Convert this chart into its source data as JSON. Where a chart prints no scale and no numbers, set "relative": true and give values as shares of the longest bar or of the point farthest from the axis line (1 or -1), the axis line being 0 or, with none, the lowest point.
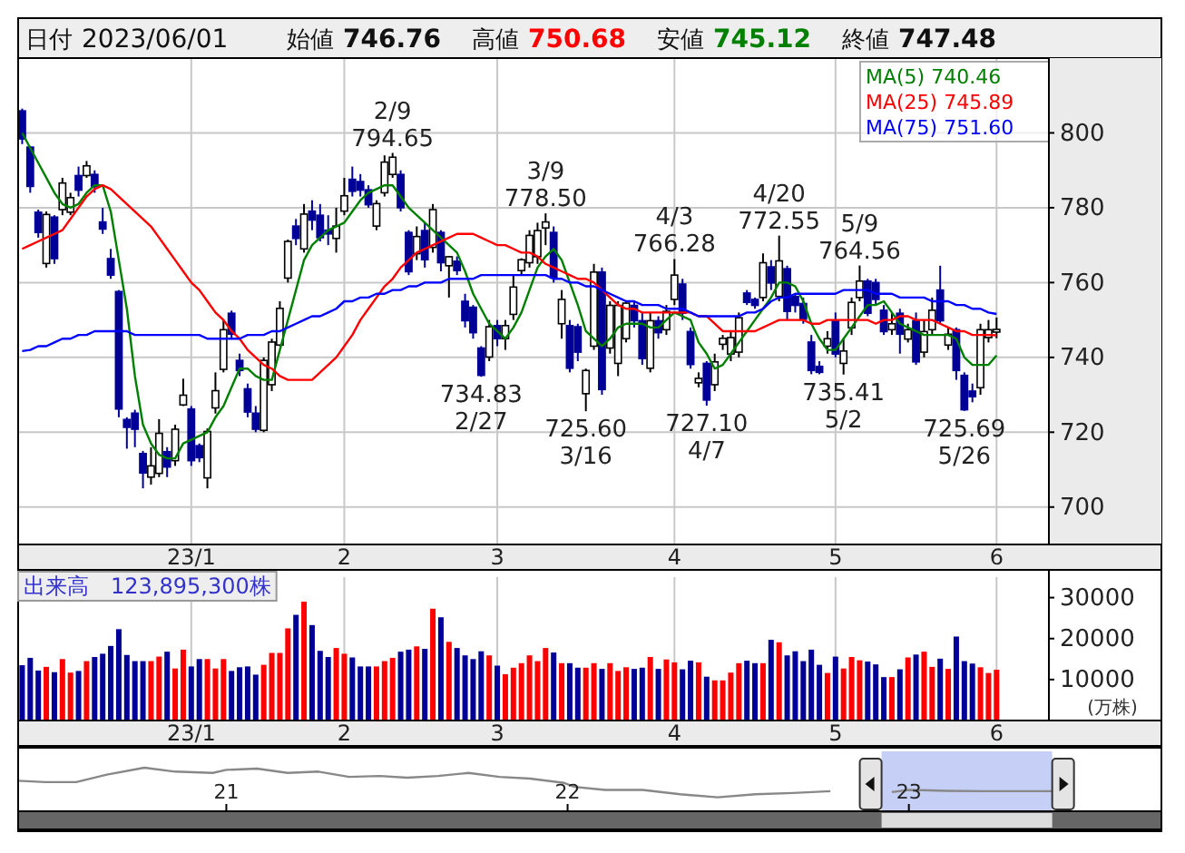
{
  "chart_data": [
    {
      "type": "candlestick",
      "categories": [
        null,
        null,
        null,
        null,
        null,
        null,
        null,
        null,
        null,
        null,
        null,
        null,
        null,
        null,
        null,
        null,
        null,
        null,
        null,
        null,
        null,
        "23/1",
        null,
        null,
        null,
        null,
        null,
        null,
        null,
        null,
        null,
        null,
        null,
        null,
        null,
        null,
        null,
        null,
        null,
        null,
        "2",
        null,
        null,
        null,
        null,
        null,
        null,
        null,
        null,
        null,
        null,
        null,
        null,
        null,
        null,
        null,
        null,
        null,
        null,
        "3",
        null,
        null,
        null,
        null,
        null,
        null,
        null,
        null,
        null,
        null,
        null,
        null,
        null,
        null,
        null,
        null,
        null,
        null,
        null,
        null,
        null,
        "4",
        null,
        null,
        null,
        null,
        null,
        null,
        null,
        null,
        null,
        null,
        null,
        null,
        null,
        null,
        null,
        null,
        null,
        null,
        null,
        "5",
        null,
        null,
        null,
        null,
        null,
        null,
        null,
        null,
        null,
        null,
        null,
        null,
        null,
        null,
        null,
        null,
        null,
        null,
        null,
        "6"
      ],
      "ohlc": [
        [
          805.9,
          806.5,
          797,
          798.4
        ],
        [
          796.2,
          796.5,
          784,
          785.7
        ],
        [
          778.8,
          779.5,
          772,
          773.4
        ],
        [
          765.1,
          779,
          764,
          778.2
        ],
        [
          777.5,
          778,
          765,
          766.4
        ],
        [
          779.5,
          788,
          778,
          786.6
        ],
        [
          778.8,
          784,
          778,
          782.7
        ],
        [
          788.6,
          791,
          783,
          784.7
        ],
        [
          788.6,
          792.5,
          788,
          791.2
        ],
        [
          788.9,
          790,
          784,
          785.7
        ],
        [
          776.2,
          780,
          773,
          774.3
        ],
        [
          766.4,
          769,
          761,
          762
        ],
        [
          757.6,
          758,
          724,
          726.2
        ],
        [
          723.4,
          724,
          715.6,
          721.3
        ],
        [
          725.1,
          726,
          716,
          720.8
        ],
        [
          714.3,
          715,
          705,
          709.1
        ],
        [
          708,
          716,
          706,
          711
        ],
        [
          709,
          723.5,
          708,
          719.7
        ],
        [
          714.8,
          716,
          708,
          710.7
        ],
        [
          712.4,
          722,
          711,
          720.8
        ],
        [
          727.3,
          734.3,
          727,
          729.9
        ],
        [
          726.2,
          727,
          711,
          712.4
        ],
        [
          716.4,
          717,
          712,
          713.2
        ],
        [
          707.8,
          721,
          705,
          720.2
        ],
        [
          726.5,
          736,
          725,
          731.1
        ],
        [
          736.8,
          750,
          736,
          747.4
        ],
        [
          751.8,
          752.5,
          745,
          746.2
        ],
        [
          739.2,
          741,
          735,
          736.5
        ],
        [
          731.6,
          733,
          724,
          725.4
        ],
        [
          725.1,
          727,
          720,
          720.8
        ],
        [
          720.5,
          740,
          720,
          739.2
        ],
        [
          732.7,
          745,
          731,
          744.1
        ],
        [
          743.3,
          755,
          743,
          753.1
        ],
        [
          761.2,
          771.5,
          760,
          771
        ],
        [
          775.1,
          777,
          770,
          771.8
        ],
        [
          769,
          781,
          768,
          778.3
        ],
        [
          779.1,
          782,
          774,
          776.7
        ],
        [
          778,
          781,
          771,
          772
        ],
        [
          774,
          778,
          770,
          773
        ],
        [
          771.8,
          780,
          768,
          775.1
        ],
        [
          779.1,
          788,
          778,
          783.2
        ],
        [
          787.6,
          791,
          783,
          784.4
        ],
        [
          787,
          789,
          783,
          784.7
        ],
        [
          784.8,
          786,
          780,
          780.8
        ],
        [
          775.1,
          782,
          774,
          781.1
        ],
        [
          784,
          794,
          783,
          792.2
        ],
        [
          788.9,
          794.65,
          788,
          793.5
        ],
        [
          788.9,
          790,
          779,
          780
        ],
        [
          773.4,
          774,
          762,
          762.9
        ],
        [
          767.7,
          775,
          766,
          772.3
        ],
        [
          773.9,
          776,
          764,
          766.1
        ],
        [
          769.4,
          781,
          768,
          779.5
        ],
        [
          773.4,
          774,
          763,
          765.3
        ],
        [
          764.5,
          767,
          756,
          766.9
        ],
        [
          765.7,
          767,
          762,
          763.2
        ],
        [
          755,
          757,
          748,
          749.8
        ],
        [
          753.4,
          754,
          745,
          746.6
        ],
        [
          742.5,
          743,
          734.83,
          735.2
        ],
        [
          740.1,
          750,
          739,
          748.2
        ],
        [
          748.5,
          750,
          743,
          745
        ],
        [
          745,
          750,
          742,
          748.5
        ],
        [
          751.5,
          762,
          750,
          758.8
        ],
        [
          763.2,
          766.5,
          762,
          766.1
        ],
        [
          765.3,
          774,
          764,
          772.6
        ],
        [
          766.9,
          776,
          765,
          773.9
        ],
        [
          774.6,
          778.5,
          770,
          776.2
        ],
        [
          773.4,
          775,
          760,
          761.2
        ],
        [
          749,
          758,
          745,
          755.5
        ],
        [
          748.5,
          750,
          736,
          737.1
        ],
        [
          748.2,
          749,
          739,
          741.4
        ],
        [
          730.3,
          737,
          725.6,
          736.5
        ],
        [
          743,
          765,
          742,
          762.8
        ],
        [
          762.8,
          764,
          730,
          731.4
        ],
        [
          742.5,
          755,
          741,
          753.9
        ],
        [
          738.4,
          755,
          735,
          753.9
        ],
        [
          745,
          755,
          744,
          754.5
        ],
        [
          753.9,
          755,
          748,
          749.8
        ],
        [
          749.8,
          752,
          738,
          739.7
        ],
        [
          737.1,
          752,
          736,
          749.8
        ],
        [
          749.8,
          751,
          745,
          746.6
        ],
        [
          747.4,
          754,
          746,
          752.3
        ],
        [
          755.5,
          766.28,
          754,
          762
        ],
        [
          759.6,
          761,
          750,
          751.8
        ],
        [
          746.9,
          748,
          737,
          738.1
        ],
        [
          733.2,
          736,
          732,
          734.4
        ],
        [
          738.4,
          739,
          727.1,
          728.6
        ],
        [
          732.7,
          741,
          731,
          738.8
        ],
        [
          743.5,
          746,
          742,
          745.1
        ],
        [
          740.9,
          747,
          739,
          745.3
        ],
        [
          741.4,
          752,
          740,
          750.6
        ],
        [
          757.2,
          758,
          754,
          754.7
        ],
        [
          755.5,
          756,
          753,
          753.9
        ],
        [
          756,
          767.8,
          755,
          765.3
        ],
        [
          764.2,
          766,
          758,
          759.9
        ],
        [
          756.3,
          772.55,
          755,
          765.8
        ],
        [
          763.7,
          764.5,
          750,
          752.3
        ],
        [
          756.3,
          757,
          752,
          753.9
        ],
        [
          754.4,
          756,
          749,
          750.2
        ],
        [
          744.1,
          746,
          735.5,
          736.5
        ],
        [
          737.6,
          739,
          735.5,
          736
        ],
        [
          743,
          747,
          741,
          745
        ],
        [
          749.8,
          752,
          740,
          740.9
        ],
        [
          738.4,
          745,
          735.41,
          741.7
        ],
        [
          747.9,
          756,
          746,
          754.7
        ],
        [
          756,
          764.56,
          755,
          760.4
        ],
        [
          760.4,
          761,
          751,
          751.8
        ],
        [
          760,
          761,
          754,
          755.5
        ],
        [
          752.6,
          754,
          746,
          746.9
        ],
        [
          747.4,
          752,
          746,
          749
        ],
        [
          751.8,
          753,
          741,
          746.2
        ],
        [
          744.9,
          749,
          744,
          747.4
        ],
        [
          749.8,
          752,
          738,
          738.8
        ],
        [
          741.4,
          750,
          740,
          746.9
        ],
        [
          747.4,
          756,
          746,
          752.6
        ],
        [
          758,
          764.5,
          749,
          749.8
        ],
        [
          743.3,
          748,
          742,
          746.2
        ],
        [
          747.4,
          748,
          734,
          736.5
        ],
        [
          735.2,
          736,
          725.69,
          726
        ],
        [
          731,
          733,
          728,
          729.5
        ],
        [
          731.9,
          749,
          730,
          747.4
        ],
        [
          745.3,
          750,
          744,
          747.4
        ],
        [
          746.76,
          750.68,
          745.12,
          747.48
        ]
      ],
      "colors": [
        "#000099",
        "#000099",
        "#000099",
        "#ffffff",
        "#000099",
        "#ffffff",
        "#ffffff",
        "#000099",
        "#ffffff",
        "#000099",
        "#000099",
        "#000099",
        "#000099",
        "#000099",
        "#000099",
        "#000099",
        "#ffffff",
        "#ffffff",
        "#000099",
        "#ffffff",
        "#ffffff",
        "#000099",
        "#000099",
        "#ffffff",
        "#ffffff",
        "#ffffff",
        "#000099",
        "#000099",
        "#000099",
        "#000099",
        "#ffffff",
        "#ffffff",
        "#ffffff",
        "#ffffff",
        "#000099",
        "#ffffff",
        "#000099",
        "#000099",
        "#000099",
        "#ffffff",
        "#ffffff",
        "#000099",
        "#000099",
        "#000099",
        "#ffffff",
        "#ffffff",
        "#ffffff",
        "#000099",
        "#000099",
        "#ffffff",
        "#000099",
        "#ffffff",
        "#000099",
        "#ffffff",
        "#000099",
        "#000099",
        "#000099",
        "#000099",
        "#ffffff",
        "#000099",
        "#ffffff",
        "#ffffff",
        "#ffffff",
        "#ffffff",
        "#ffffff",
        "#ffffff",
        "#000099",
        "#ffffff",
        "#000099",
        "#000099",
        "#ffffff",
        "#ffffff",
        "#000099",
        "#ffffff",
        "#ffffff",
        "#ffffff",
        "#000099",
        "#000099",
        "#ffffff",
        "#000099",
        "#ffffff",
        "#ffffff",
        "#000099",
        "#000099",
        "#ffffff",
        "#000099",
        "#ffffff",
        "#ffffff",
        "#ffffff",
        "#ffffff",
        "#000099",
        "#000099",
        "#ffffff",
        "#000099",
        "#ffffff",
        "#000099",
        "#000099",
        "#000099",
        "#000099",
        "#000099",
        "#ffffff",
        "#000099",
        "#ffffff",
        "#ffffff",
        "#ffffff",
        "#000099",
        "#000099",
        "#000099",
        "#ffffff",
        "#000099",
        "#ffffff",
        "#000099",
        "#ffffff",
        "#ffffff",
        "#000099",
        "#ffffff",
        "#000099",
        "#000099",
        "#000099",
        "#ffffff",
        "#ffffff",
        "#ffffff"
      ],
      "series": [
        {
          "name": "MA(5) 740.46",
          "type": "line",
          "color": "#008000",
          "values": [
            800,
            796,
            792,
            788,
            784,
            781,
            780,
            781,
            784,
            786,
            786,
            779,
            766,
            753,
            735,
            722,
            717,
            714,
            713,
            713,
            717,
            718,
            719,
            720,
            724,
            727,
            732,
            737,
            737,
            735,
            734,
            734,
            742,
            750,
            758,
            766,
            770,
            772,
            774,
            775,
            776,
            779,
            782,
            784,
            785,
            786,
            786,
            783,
            780,
            778,
            776,
            774,
            772,
            770,
            768,
            763,
            757,
            753,
            749,
            747,
            745,
            748,
            752,
            758,
            764,
            767,
            769,
            766,
            760,
            754,
            747,
            745,
            743,
            745,
            748,
            749,
            749,
            749,
            748,
            748,
            750,
            752,
            751,
            750,
            744,
            741,
            737,
            738,
            741,
            744,
            747,
            750,
            753,
            756,
            760,
            760,
            759,
            755,
            749,
            745,
            742,
            742,
            745,
            748,
            751,
            754,
            754,
            755,
            752,
            749,
            748,
            747,
            746,
            746,
            746,
            746,
            745,
            740,
            738,
            738,
            738,
            740.5
          ]
        },
        {
          "name": "MA(25) 745.89",
          "type": "line",
          "color": "#ff0000",
          "values": [
            769,
            770,
            771,
            772,
            773,
            774,
            777,
            780,
            783,
            785,
            786,
            785,
            783,
            781,
            779,
            777,
            775,
            772,
            769,
            766,
            763,
            760,
            758,
            755,
            752,
            750,
            747,
            745,
            742,
            740,
            738,
            737,
            735,
            734,
            734,
            734,
            734,
            736,
            738,
            740,
            743,
            746,
            750,
            753,
            756,
            759,
            761,
            764,
            766,
            768,
            769,
            770,
            771,
            772,
            773,
            773,
            773,
            772,
            771,
            770,
            770,
            769,
            768,
            768,
            767,
            765,
            764,
            763,
            762,
            761,
            761,
            760,
            758,
            756,
            754,
            753,
            753,
            752,
            752,
            752,
            752,
            752,
            752,
            752,
            751,
            751,
            749,
            747,
            747,
            747,
            747,
            747,
            748,
            749,
            750,
            750,
            750,
            750,
            749,
            749,
            750,
            750,
            750,
            750,
            750,
            750,
            749,
            750,
            750,
            751,
            751,
            750,
            750,
            750,
            749,
            748,
            747,
            747,
            746,
            746,
            746,
            745.9
          ]
        },
        {
          "name": "MA(75) 751.60",
          "type": "line",
          "color": "#0000ff",
          "values": [
            741.7,
            742,
            743,
            743,
            744,
            745,
            745,
            746,
            746,
            747,
            747,
            747,
            747,
            747,
            746,
            746,
            746,
            746,
            746,
            746,
            746,
            746,
            746,
            745,
            745,
            745,
            745,
            745,
            746,
            746,
            746,
            747,
            747,
            748,
            749,
            750,
            751,
            751,
            752,
            753,
            755,
            755,
            756,
            756,
            757,
            757,
            758,
            758,
            759,
            759,
            760,
            760,
            760,
            761,
            761,
            761,
            761,
            762,
            762,
            762,
            762,
            762,
            762,
            762,
            762,
            762,
            761,
            761,
            760,
            760,
            759,
            759,
            758,
            757,
            756,
            755,
            755,
            754,
            754,
            754,
            753,
            753,
            753,
            752,
            751,
            751,
            751,
            751,
            751,
            751,
            752,
            752,
            753,
            755,
            756,
            756,
            757,
            757,
            757,
            757,
            757,
            757,
            758,
            758,
            758,
            758,
            757,
            757,
            757,
            756,
            756,
            756,
            756,
            755,
            755,
            755,
            754,
            754,
            753,
            753,
            752,
            751.6
          ]
        }
      ],
      "ylim": [
        690,
        820
      ],
      "yticks": [
        700,
        720,
        740,
        760,
        780,
        800
      ],
      "grid": true,
      "legend": "top right",
      "annotations": [
        "日付 2023/06/01",
        "始値 746.76",
        "高値 750.68",
        "安値 745.12",
        "終値 747.48",
        {
          "text": "2/9\n794.65",
          "y": 794.65
        },
        {
          "text": "3/9\n778.50",
          "y": 778.5
        },
        {
          "text": "4/3\n766.28",
          "y": 766.28
        },
        {
          "text": "4/20\n772.55",
          "y": 772.55
        },
        {
          "text": "5/9\n764.56",
          "y": 764.56
        },
        {
          "text": "734.83\n2/27",
          "y": 734.83
        },
        {
          "text": "725.60\n3/16",
          "y": 725.6
        },
        {
          "text": "727.10\n4/7",
          "y": 727.1
        },
        {
          "text": "735.41\n5/2",
          "y": 735.41
        },
        {
          "text": "725.69\n5/26",
          "y": 725.69
        }
      ]
    },
    {
      "type": "bar",
      "title": "出来高　123,895,300株",
      "ylabel": "(万株)",
      "categories": [
        null,
        null,
        null,
        null,
        null,
        null,
        null,
        null,
        null,
        null,
        null,
        null,
        null,
        null,
        null,
        null,
        null,
        null,
        null,
        null,
        null,
        "23/1",
        null,
        null,
        null,
        null,
        null,
        null,
        null,
        null,
        null,
        null,
        null,
        null,
        null,
        null,
        null,
        null,
        null,
        null,
        "2",
        null,
        null,
        null,
        null,
        null,
        null,
        null,
        null,
        null,
        null,
        null,
        null,
        null,
        null,
        null,
        null,
        null,
        null,
        "3",
        null,
        null,
        null,
        null,
        null,
        null,
        null,
        null,
        null,
        null,
        null,
        null,
        null,
        null,
        null,
        null,
        null,
        null,
        null,
        null,
        null,
        "4",
        null,
        null,
        null,
        null,
        null,
        null,
        null,
        null,
        null,
        null,
        null,
        null,
        null,
        null,
        null,
        null,
        null,
        null,
        null,
        "5",
        null,
        null,
        null,
        null,
        null,
        null,
        null,
        null,
        null,
        null,
        null,
        null,
        null,
        null,
        null,
        null,
        null,
        null,
        null,
        "6"
      ],
      "values": [
        13500,
        15300,
        12200,
        13100,
        11800,
        15000,
        11700,
        12100,
        14500,
        15500,
        16300,
        18200,
        22300,
        16000,
        14500,
        14500,
        14500,
        15600,
        16800,
        12700,
        17300,
        13200,
        15000,
        15000,
        12700,
        15000,
        12100,
        13000,
        13200,
        11200,
        13600,
        16500,
        16500,
        22500,
        25800,
        29000,
        23300,
        17000,
        15500,
        17700,
        16300,
        15400,
        13200,
        13200,
        13200,
        14500,
        15300,
        16800,
        17300,
        18100,
        17500,
        27300,
        25200,
        19200,
        17700,
        15900,
        15000,
        16900,
        15900,
        13400,
        11300,
        12900,
        14000,
        15900,
        14500,
        17700,
        16600,
        14000,
        14000,
        12900,
        12900,
        14000,
        12600,
        14000,
        12100,
        13000,
        12600,
        12900,
        15500,
        12600,
        14900,
        14200,
        12500,
        14600,
        14200,
        10700,
        9800,
        9800,
        11700,
        14000,
        14600,
        14000,
        14000,
        19700,
        19100,
        15900,
        16900,
        14500,
        17300,
        13600,
        11600,
        15600,
        12700,
        15500,
        14700,
        14400,
        13700,
        10600,
        10600,
        12500,
        15400,
        16100,
        16800,
        13100,
        15100,
        12600,
        20500,
        14500,
        13900,
        13000,
        11600,
        12400
      ],
      "colors": [
        "#000099",
        "#000099",
        "#000099",
        "#ff0000",
        "#000099",
        "#ff0000",
        "#ff0000",
        "#000099",
        "#ff0000",
        "#000099",
        "#000099",
        "#000099",
        "#000099",
        "#000099",
        "#000099",
        "#000099",
        "#ff0000",
        "#ff0000",
        "#000099",
        "#ff0000",
        "#ff0000",
        "#000099",
        "#000099",
        "#ff0000",
        "#ff0000",
        "#ff0000",
        "#000099",
        "#000099",
        "#000099",
        "#000099",
        "#ff0000",
        "#ff0000",
        "#ff0000",
        "#ff0000",
        "#000099",
        "#ff0000",
        "#000099",
        "#000099",
        "#000099",
        "#ff0000",
        "#ff0000",
        "#000099",
        "#000099",
        "#000099",
        "#ff0000",
        "#ff0000",
        "#ff0000",
        "#000099",
        "#000099",
        "#ff0000",
        "#000099",
        "#ff0000",
        "#000099",
        "#ff0000",
        "#000099",
        "#000099",
        "#000099",
        "#000099",
        "#ff0000",
        "#000099",
        "#ff0000",
        "#ff0000",
        "#ff0000",
        "#ff0000",
        "#ff0000",
        "#ff0000",
        "#000099",
        "#ff0000",
        "#000099",
        "#000099",
        "#ff0000",
        "#ff0000",
        "#000099",
        "#ff0000",
        "#ff0000",
        "#ff0000",
        "#000099",
        "#000099",
        "#ff0000",
        "#000099",
        "#ff0000",
        "#ff0000",
        "#000099",
        "#000099",
        "#ff0000",
        "#000099",
        "#ff0000",
        "#ff0000",
        "#ff0000",
        "#ff0000",
        "#000099",
        "#000099",
        "#ff0000",
        "#000099",
        "#ff0000",
        "#000099",
        "#000099",
        "#000099",
        "#000099",
        "#000099",
        "#ff0000",
        "#000099",
        "#ff0000",
        "#ff0000",
        "#ff0000",
        "#000099",
        "#000099",
        "#000099",
        "#ff0000",
        "#000099",
        "#ff0000",
        "#000099",
        "#ff0000",
        "#ff0000",
        "#000099",
        "#ff0000",
        "#000099",
        "#000099",
        "#000099",
        "#ff0000",
        "#ff0000",
        "#ff0000"
      ],
      "ylim": [
        0,
        35000
      ],
      "yticks": [
        10000,
        20000,
        30000
      ],
      "grid": "x"
    },
    {
      "type": "line",
      "relative": true,
      "color": "#888888",
      "x": [
        2020.39,
        2020.47,
        2020.56,
        2020.65,
        2020.76,
        2020.85,
        2020.96,
        2021.0,
        2021.09,
        2021.18,
        2021.27,
        2021.36,
        2021.45,
        2021.53,
        2021.62,
        2021.71,
        2021.8,
        2021.89,
        2021.99,
        2022.02,
        2022.11,
        2022.22,
        2022.33,
        2022.44,
        2022.55,
        2022.66,
        2022.77,
        2022.89,
        2022.95,
        2023.0,
        2023.11,
        2023.22,
        2023.42
      ],
      "values": [
        0.7,
        0.67,
        0.67,
        0.84,
        1,
        0.91,
        0.88,
        0.95,
        0.98,
        0.88,
        0.91,
        0.79,
        0.81,
        0.77,
        0.81,
        0.88,
        0.79,
        0.75,
        0.65,
        0.56,
        0.49,
        0.49,
        0.39,
        0.32,
        0.39,
        0.42,
        0.46,
        null,
        0.44,
        0.49,
        0.47,
        0.46,
        0.46
      ],
      "xlim": [
        2020.39,
        2023.74
      ],
      "xticks": [
        {
          "value": 2021,
          "label": "21"
        },
        {
          "value": 2022,
          "label": "22"
        },
        {
          "value": 2023,
          "label": "23"
        }
      ],
      "bands": [
        {
          "axis": "x",
          "from": 2022.92,
          "to": 2023.42,
          "color": "#b8c4f4"
        }
      ]
    }
  ]
}
